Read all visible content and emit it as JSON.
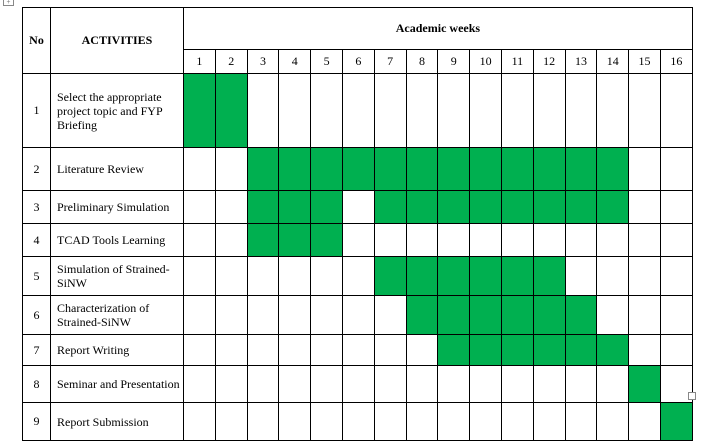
{
  "header": {
    "no": "No",
    "activities": "ACTIVITIES",
    "weeks_title": "Academic weeks"
  },
  "weeks": [
    "1",
    "2",
    "3",
    "4",
    "5",
    "6",
    "7",
    "8",
    "9",
    "10",
    "11",
    "12",
    "13",
    "14",
    "15",
    "16"
  ],
  "highlight_color": "#00B050",
  "rows": [
    {
      "no": "1",
      "activity": "Select the appropriate project topic and FYP Briefing",
      "weeks": [
        1,
        2
      ]
    },
    {
      "no": "2",
      "activity": "Literature Review",
      "weeks": [
        3,
        4,
        5,
        6,
        7,
        8,
        9,
        10,
        11,
        12,
        13,
        14
      ]
    },
    {
      "no": "3",
      "activity": "Preliminary Simulation",
      "weeks": [
        3,
        4,
        5,
        7,
        8,
        9,
        10,
        11,
        12,
        13,
        14
      ]
    },
    {
      "no": "4",
      "activity": "TCAD Tools Learning",
      "weeks": [
        3,
        4,
        5
      ]
    },
    {
      "no": "5",
      "activity": "Simulation of Strained-SiNW",
      "weeks": [
        7,
        8,
        9,
        10,
        11,
        12
      ]
    },
    {
      "no": "6",
      "activity": "Characterization of Strained-SiNW",
      "weeks": [
        8,
        9,
        10,
        11,
        12,
        13
      ]
    },
    {
      "no": "7",
      "activity": "Report Writing",
      "weeks": [
        9,
        10,
        11,
        12,
        13,
        14
      ]
    },
    {
      "no": "8",
      "activity": "Seminar and Presentation",
      "weeks": [
        15
      ]
    },
    {
      "no": "9",
      "activity": "Report Submission",
      "weeks": [
        16
      ]
    }
  ]
}
